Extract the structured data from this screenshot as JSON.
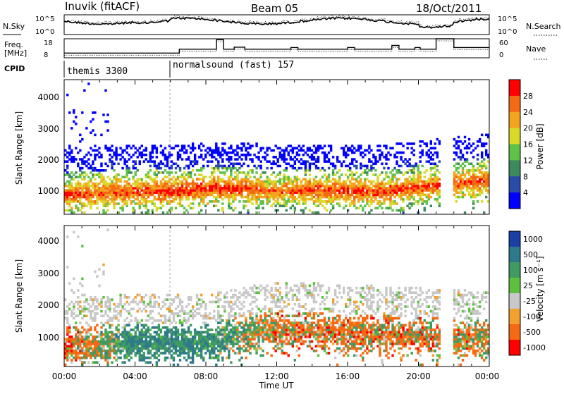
{
  "header": {
    "station": "Inuvik (fitACF)",
    "beam": "Beam 05",
    "date": "18/Oct/2011"
  },
  "strip": {
    "left_labels": {
      "nsky": "N.Sky",
      "freq_line1": "Freq.",
      "freq_line2": "[MHz]",
      "cpid": "CPID"
    },
    "right_labels": {
      "nsearch": "N.Search",
      "nave": "Nave"
    },
    "nsky_ticks": [
      "10^5",
      "10^0"
    ],
    "nsearch_ticks": [
      "10^5",
      "10^0"
    ],
    "freq_ticks": [
      "18",
      "8"
    ],
    "nave_ticks": [
      "60",
      "0"
    ],
    "cpid_segments": [
      {
        "label": "themis 3300",
        "start_hour": 0
      },
      {
        "label": "normalsound (fast) 157",
        "start_hour": 6
      }
    ],
    "freq_series_MHz": [
      [
        0,
        10.5
      ],
      [
        6.5,
        10.5
      ],
      [
        6.5,
        12.5
      ],
      [
        8.6,
        12.5
      ],
      [
        8.6,
        17.5
      ],
      [
        9.0,
        17.5
      ],
      [
        9.0,
        12.5
      ],
      [
        9.6,
        12.5
      ],
      [
        9.6,
        13.6
      ],
      [
        10.2,
        13.6
      ],
      [
        10.2,
        12.5
      ],
      [
        12.8,
        12.5
      ],
      [
        12.8,
        13.4
      ],
      [
        13.2,
        13.4
      ],
      [
        13.2,
        12.5
      ],
      [
        16.0,
        12.5
      ],
      [
        16.0,
        13.4
      ],
      [
        16.4,
        13.4
      ],
      [
        16.4,
        12.5
      ],
      [
        18.5,
        12.5
      ],
      [
        18.5,
        14.5
      ],
      [
        18.9,
        14.5
      ],
      [
        18.9,
        12.5
      ],
      [
        19.8,
        12.5
      ],
      [
        19.8,
        13.4
      ],
      [
        20.1,
        13.4
      ],
      [
        20.1,
        12.5
      ],
      [
        21.0,
        12.5
      ],
      [
        21.0,
        18
      ],
      [
        22.0,
        18
      ],
      [
        22.0,
        13.4
      ],
      [
        24,
        13.4
      ]
    ]
  },
  "axes": {
    "ylabel": "Slant Range [km]",
    "yticks": [
      "1000",
      "2000",
      "3000",
      "4000"
    ],
    "xticks": [
      "00:00",
      "04:00",
      "08:00",
      "12:00",
      "16:00",
      "20:00",
      "00:00"
    ],
    "xlabel": "Time UT"
  },
  "colorbars": {
    "power": {
      "label": "Power [dB]",
      "ticks": [
        "4",
        "8",
        "12",
        "16",
        "20",
        "24",
        "28"
      ],
      "colors": [
        "#0000ff",
        "#2b4ba8",
        "#3f8a5c",
        "#5fc04a",
        "#d9d92a",
        "#f4a31e",
        "#f46a14",
        "#ff0000"
      ]
    },
    "velocity": {
      "label": "Velocity [m s⁻¹]",
      "ticks": [
        "1000",
        "500",
        "100",
        "25",
        "-25",
        "-100",
        "-500",
        "-1000"
      ],
      "colors": [
        "#1a3fa5",
        "#2e7a8a",
        "#3f9a63",
        "#5fc040",
        "#c8c8c8",
        "#f2a030",
        "#f46a14",
        "#ff0000"
      ]
    }
  },
  "chart_data": [
    {
      "type": "heatmap",
      "title": "Power [dB]",
      "xlabel": "Time UT",
      "ylabel": "Slant Range [km]",
      "xlim": [
        0,
        24
      ],
      "ylim": [
        180,
        4500
      ],
      "z_range": [
        0,
        30
      ],
      "dominant_echo_band_km": [
        {
          "t": 0,
          "center": 800,
          "level": 27
        },
        {
          "t": 3,
          "center": 900,
          "level": 26
        },
        {
          "t": 6,
          "center": 900,
          "level": 28
        },
        {
          "t": 8,
          "center": 1000,
          "level": 28
        },
        {
          "t": 10,
          "center": 1000,
          "level": 27
        },
        {
          "t": 12,
          "center": 900,
          "level": 24
        },
        {
          "t": 14,
          "center": 950,
          "level": 27
        },
        {
          "t": 18,
          "center": 900,
          "level": 27
        },
        {
          "t": 21,
          "center": 1100,
          "level": 26
        },
        {
          "t": 23.5,
          "center": 1250,
          "level": 27
        }
      ]
    },
    {
      "type": "heatmap",
      "title": "Velocity [m s-1]",
      "xlabel": "Time UT",
      "ylabel": "Slant Range [km]",
      "xlim": [
        0,
        24
      ],
      "ylim": [
        180,
        4500
      ],
      "z_range": [
        -1000,
        1000
      ],
      "dominant_velocity_m_s": [
        {
          "t": 0,
          "center": 800,
          "v": -200
        },
        {
          "t": 4,
          "center": 900,
          "v": 300
        },
        {
          "t": 8,
          "center": 900,
          "v": 300
        },
        {
          "t": 12,
          "center": 1300,
          "v": -100
        },
        {
          "t": 16,
          "center": 1200,
          "v": -100
        },
        {
          "t": 20,
          "center": 1100,
          "v": -100
        },
        {
          "t": 23.5,
          "center": 1000,
          "v": -50
        }
      ]
    }
  ]
}
